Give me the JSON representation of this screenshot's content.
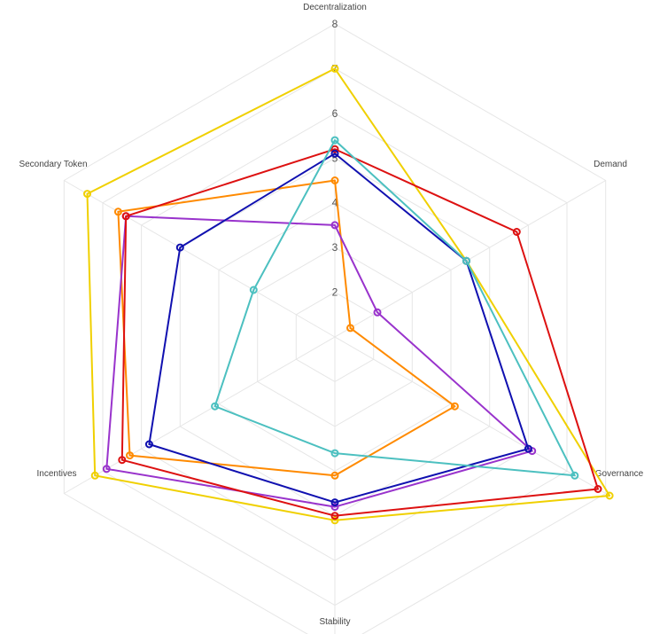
{
  "chart_data": {
    "type": "radar",
    "title": "",
    "axes": [
      "Decentralization",
      "Demand",
      "Governance",
      "Stability",
      "Incentives",
      "Secondary Token"
    ],
    "range": [
      1,
      8
    ],
    "ticks": [
      2,
      3,
      4,
      5,
      6,
      7,
      8
    ],
    "grid": true,
    "legend": "none",
    "series": [
      {
        "color": "#f0d000",
        "values": [
          7.0,
          4.4,
          8.1,
          5.1,
          7.2,
          7.4
        ]
      },
      {
        "color": "#ff8a00",
        "values": [
          4.5,
          1.4,
          4.1,
          4.1,
          6.3,
          6.6
        ]
      },
      {
        "color": "#9933cc",
        "values": [
          3.5,
          2.1,
          6.1,
          4.8,
          6.9,
          6.4
        ]
      },
      {
        "color": "#dd1111",
        "values": [
          5.2,
          5.7,
          7.8,
          5.0,
          6.5,
          6.4
        ]
      },
      {
        "color": "#1010b0",
        "values": [
          5.1,
          4.4,
          6.0,
          4.7,
          5.8,
          5.0
        ]
      },
      {
        "color": "#4cc0c0",
        "values": [
          5.4,
          4.4,
          7.2,
          3.6,
          4.1,
          3.1
        ]
      }
    ]
  }
}
